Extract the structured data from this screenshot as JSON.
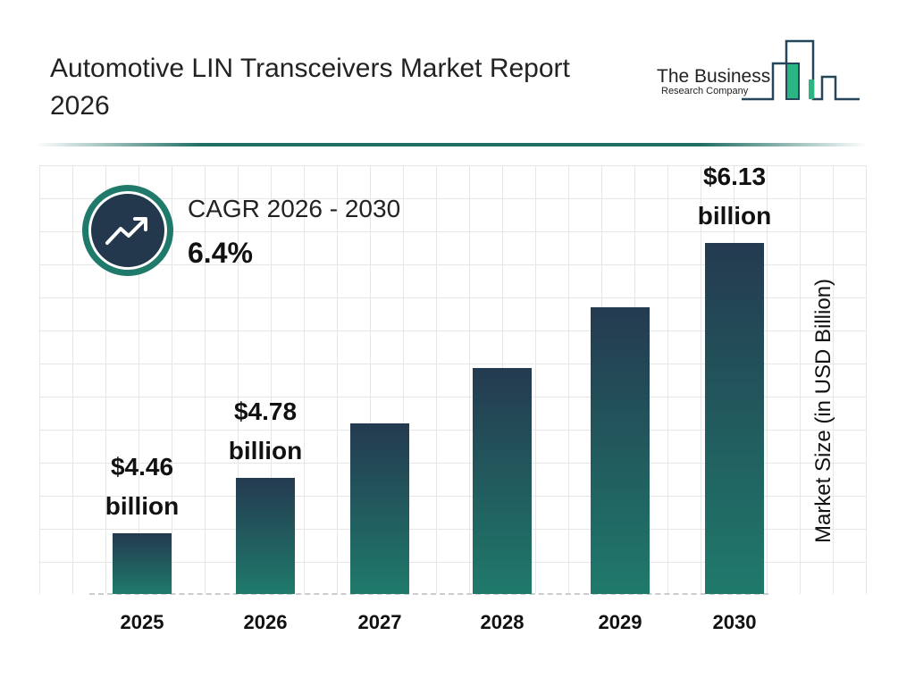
{
  "title": "Automotive LIN Transceivers Market Report 2026",
  "logo": {
    "line1": "The Business",
    "line2": "Research Company"
  },
  "cagr": {
    "label": "CAGR 2026 - 2030",
    "value": "6.4%",
    "icon": "trending-up-icon"
  },
  "chart_data": {
    "type": "bar",
    "title": "Automotive LIN Transceivers Market Report 2026",
    "ylabel": "Market Size (in USD Billion)",
    "xlabel": "",
    "categories": [
      "2025",
      "2026",
      "2027",
      "2028",
      "2029",
      "2030"
    ],
    "values": [
      4.46,
      4.78,
      5.09,
      5.41,
      5.76,
      6.13
    ],
    "data_labels": [
      {
        "category": "2025",
        "line1": "$4.46",
        "line2": "billion"
      },
      {
        "category": "2026",
        "line1": "$4.78",
        "line2": "billion"
      },
      {
        "category": "2030",
        "line1": "$6.13",
        "line2": "billion"
      }
    ],
    "grid": true,
    "colors": {
      "bar_top": "#243a50",
      "bar_bottom": "#1f7a6b"
    }
  }
}
